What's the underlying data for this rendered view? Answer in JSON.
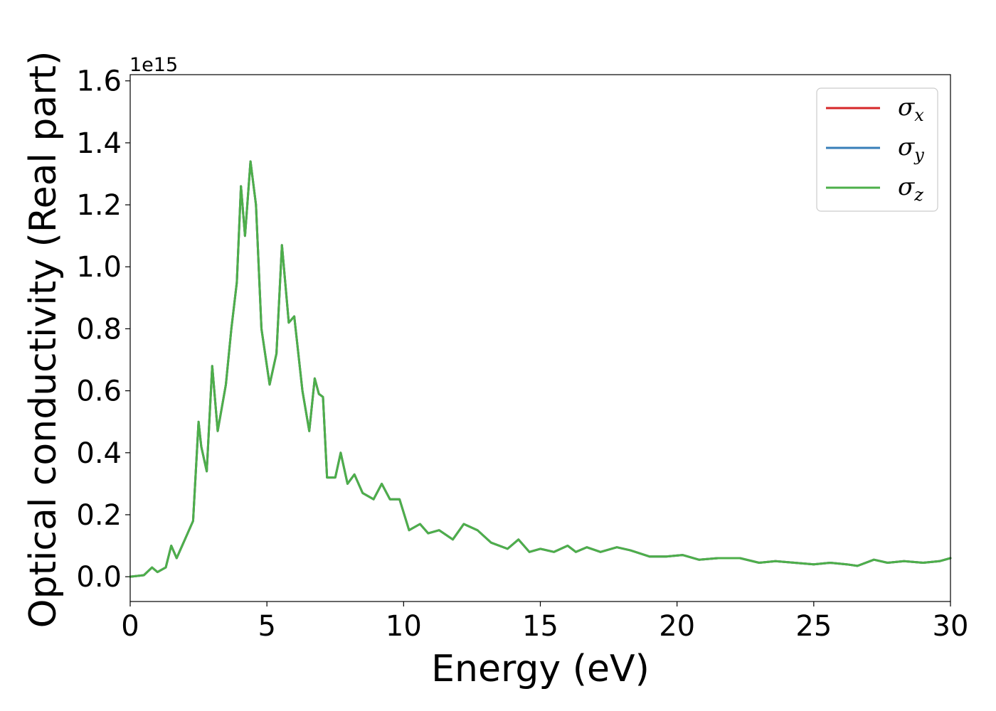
{
  "chart_data": {
    "type": "line",
    "xlabel": "Energy (eV)",
    "ylabel": "Optical conductivity (Real part)",
    "y_offset_label": "1e15",
    "y_scale_factor": 1000000000000000.0,
    "xlim": [
      0,
      30
    ],
    "ylim": [
      -0.08,
      1.62
    ],
    "x_ticks": [
      0,
      5,
      10,
      15,
      20,
      25,
      30
    ],
    "x_tick_labels": [
      "0",
      "5",
      "10",
      "15",
      "20",
      "25",
      "30"
    ],
    "y_ticks": [
      0.0,
      0.2,
      0.4,
      0.6,
      0.8,
      1.0,
      1.2,
      1.4,
      1.6
    ],
    "y_tick_labels": [
      "0.0",
      "0.2",
      "0.4",
      "0.6",
      "0.8",
      "1.0",
      "1.2",
      "1.4",
      "1.6"
    ],
    "grid": false,
    "legend_position": "top-right",
    "series": [
      {
        "name": "σx",
        "legend_symbol": "σ",
        "legend_subscript": "x",
        "color": "#d62728",
        "shares_curve_with": "σz"
      },
      {
        "name": "σy",
        "legend_symbol": "σ",
        "legend_subscript": "y",
        "color": "#377eb8",
        "shares_curve_with": "σz"
      },
      {
        "name": "σz",
        "legend_symbol": "σ",
        "legend_subscript": "z",
        "color": "#4daf4a"
      }
    ],
    "x": [
      0,
      0.5,
      0.8,
      1.0,
      1.3,
      1.5,
      1.7,
      2.0,
      2.3,
      2.5,
      2.6,
      2.8,
      3.0,
      3.2,
      3.5,
      3.7,
      3.9,
      4.05,
      4.2,
      4.4,
      4.6,
      4.8,
      5.1,
      5.35,
      5.55,
      5.8,
      6.0,
      6.3,
      6.55,
      6.75,
      6.9,
      7.05,
      7.2,
      7.5,
      7.7,
      7.95,
      8.2,
      8.5,
      8.9,
      9.2,
      9.5,
      9.85,
      10.2,
      10.6,
      10.9,
      11.3,
      11.8,
      12.2,
      12.7,
      13.2,
      13.8,
      14.2,
      14.6,
      15.0,
      15.5,
      16.0,
      16.3,
      16.7,
      17.2,
      17.8,
      18.3,
      19.0,
      19.6,
      20.2,
      20.8,
      21.5,
      22.3,
      23.0,
      23.6,
      24.3,
      25.0,
      25.6,
      26.2,
      26.6,
      27.2,
      27.7,
      28.3,
      29.0,
      29.6,
      30.0
    ],
    "values": [
      0.0,
      0.005,
      0.03,
      0.015,
      0.03,
      0.1,
      0.06,
      0.12,
      0.18,
      0.5,
      0.42,
      0.34,
      0.68,
      0.47,
      0.62,
      0.8,
      0.95,
      1.26,
      1.1,
      1.34,
      1.2,
      0.8,
      0.62,
      0.72,
      1.07,
      0.82,
      0.84,
      0.6,
      0.47,
      0.64,
      0.59,
      0.58,
      0.32,
      0.32,
      0.4,
      0.3,
      0.33,
      0.27,
      0.25,
      0.3,
      0.25,
      0.25,
      0.15,
      0.17,
      0.14,
      0.15,
      0.12,
      0.17,
      0.15,
      0.11,
      0.09,
      0.12,
      0.08,
      0.09,
      0.08,
      0.1,
      0.08,
      0.095,
      0.08,
      0.095,
      0.085,
      0.065,
      0.065,
      0.07,
      0.055,
      0.06,
      0.06,
      0.045,
      0.05,
      0.045,
      0.04,
      0.045,
      0.04,
      0.035,
      0.055,
      0.045,
      0.05,
      0.045,
      0.05,
      0.06
    ]
  }
}
